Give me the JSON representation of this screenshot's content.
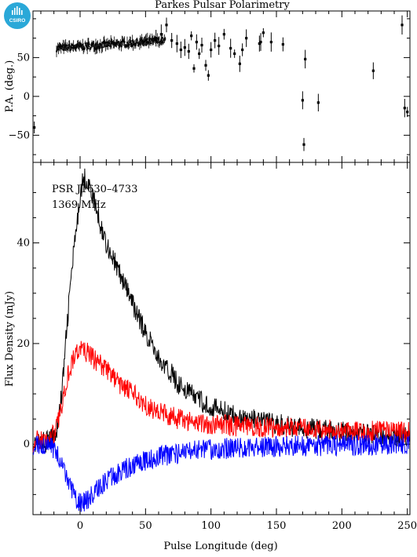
{
  "branding": {
    "logo_text": "CSIRO",
    "logo_color": "#2aa8d8"
  },
  "chart_data": [
    {
      "type": "scatter",
      "title": "Parkes Pulsar Polarimetry",
      "xlabel": "",
      "ylabel": "P.A. (deg.)",
      "xlim": [
        -36,
        252
      ],
      "ylim": [
        -85,
        110
      ],
      "yticks": [
        -50,
        0,
        50
      ],
      "color": "#000000",
      "dense_band": {
        "x_start": -18,
        "x_end": 65,
        "y_start": 62,
        "y_end": 72
      },
      "points": [
        {
          "x": -35,
          "y": -40
        },
        {
          "x": 58,
          "y": 75
        },
        {
          "x": 62,
          "y": 80
        },
        {
          "x": 66,
          "y": 92
        },
        {
          "x": 70,
          "y": 72
        },
        {
          "x": 74,
          "y": 68
        },
        {
          "x": 77,
          "y": 60
        },
        {
          "x": 80,
          "y": 63
        },
        {
          "x": 83,
          "y": 58
        },
        {
          "x": 85,
          "y": 78
        },
        {
          "x": 87,
          "y": 36
        },
        {
          "x": 89,
          "y": 70
        },
        {
          "x": 91,
          "y": 55
        },
        {
          "x": 93,
          "y": 66
        },
        {
          "x": 96,
          "y": 40
        },
        {
          "x": 98,
          "y": 27
        },
        {
          "x": 100,
          "y": 60
        },
        {
          "x": 103,
          "y": 72
        },
        {
          "x": 106,
          "y": 65
        },
        {
          "x": 110,
          "y": 80
        },
        {
          "x": 115,
          "y": 62
        },
        {
          "x": 118,
          "y": 55
        },
        {
          "x": 122,
          "y": 42
        },
        {
          "x": 124,
          "y": 60
        },
        {
          "x": 127,
          "y": 75
        },
        {
          "x": 137,
          "y": 68
        },
        {
          "x": 138,
          "y": 70
        },
        {
          "x": 140,
          "y": 82
        },
        {
          "x": 146,
          "y": 70
        },
        {
          "x": 155,
          "y": 67
        },
        {
          "x": 170,
          "y": -5
        },
        {
          "x": 171,
          "y": -62
        },
        {
          "x": 172,
          "y": 48
        },
        {
          "x": 182,
          "y": -8
        },
        {
          "x": 224,
          "y": 33
        },
        {
          "x": 246,
          "y": 92
        },
        {
          "x": 248,
          "y": -15
        },
        {
          "x": 250,
          "y": -20
        }
      ]
    },
    {
      "type": "line",
      "xlabel": "Pulse Longitude (deg)",
      "ylabel": "Flux Density (mJy)",
      "xlim": [
        -36,
        252
      ],
      "ylim": [
        -14,
        56
      ],
      "xticks": [
        0,
        50,
        100,
        150,
        200,
        250
      ],
      "yticks": [
        0,
        20,
        40
      ],
      "annotations": [
        "PSR J1630–4733",
        "1369 MHz"
      ],
      "series": [
        {
          "color": "#000000",
          "x": [
            -36,
            -30,
            -25,
            -20,
            -17,
            -14,
            -11,
            -8,
            -5,
            -2,
            0,
            3,
            6,
            10,
            15,
            20,
            25,
            30,
            35,
            40,
            45,
            50,
            55,
            60,
            65,
            70,
            75,
            80,
            85,
            90,
            95,
            100,
            105,
            110,
            115,
            120,
            130,
            140,
            150,
            160,
            170,
            180,
            190,
            200,
            210,
            220,
            230,
            240,
            252
          ],
          "y": [
            0,
            0.3,
            0.6,
            1.5,
            4,
            10,
            20,
            30,
            38,
            44,
            50,
            53,
            52,
            49,
            44,
            40,
            37,
            34,
            31,
            28,
            25,
            22,
            20,
            17,
            15,
            14,
            12,
            11,
            10,
            9,
            8,
            7.5,
            7,
            6.5,
            6,
            5.5,
            5,
            4.5,
            4,
            3.6,
            3.3,
            3.0,
            2.7,
            2.4,
            2.2,
            2.0,
            1.8,
            1.6,
            1.4
          ]
        },
        {
          "color": "#ff0000",
          "x": [
            -36,
            -30,
            -25,
            -20,
            -17,
            -14,
            -11,
            -8,
            -5,
            -2,
            0,
            3,
            6,
            10,
            15,
            20,
            25,
            30,
            35,
            40,
            45,
            50,
            55,
            60,
            65,
            70,
            75,
            80,
            85,
            90,
            95,
            100,
            105,
            110,
            115,
            120,
            130,
            140,
            150,
            160,
            170,
            180,
            190,
            200,
            210,
            220,
            230,
            240,
            252
          ],
          "y": [
            0.5,
            0.8,
            1,
            2,
            4,
            8,
            12,
            15,
            17,
            18.5,
            19,
            18.5,
            18,
            17,
            16,
            15,
            13.5,
            12,
            11,
            10,
            9,
            8,
            7,
            6.5,
            6,
            5.5,
            5,
            4.8,
            4.6,
            4.4,
            4.2,
            4,
            3.9,
            3.8,
            3.7,
            3.6,
            3.5,
            3.4,
            3.3,
            3.2,
            3.1,
            3.0,
            2.9,
            2.8,
            2.7,
            2.6,
            2.5,
            2.4,
            2.3
          ]
        },
        {
          "color": "#0000ff",
          "x": [
            -36,
            -30,
            -25,
            -20,
            -17,
            -14,
            -11,
            -8,
            -5,
            -2,
            0,
            3,
            6,
            10,
            15,
            20,
            25,
            30,
            35,
            40,
            45,
            50,
            55,
            60,
            65,
            70,
            75,
            80,
            85,
            90,
            95,
            100,
            105,
            110,
            115,
            120,
            130,
            140,
            150,
            160,
            170,
            180,
            190,
            200,
            210,
            220,
            230,
            240,
            252
          ],
          "y": [
            0,
            0,
            -0.3,
            -0.8,
            -2,
            -4,
            -6.5,
            -8.5,
            -10,
            -11,
            -11.5,
            -11.5,
            -11,
            -10,
            -8.5,
            -7.5,
            -6.5,
            -5.5,
            -4.8,
            -4.2,
            -3.6,
            -3.2,
            -2.8,
            -2.5,
            -2.2,
            -2,
            -1.8,
            -1.6,
            -1.4,
            -1.3,
            -1.2,
            -1.1,
            -1,
            -0.9,
            -0.8,
            -0.7,
            -0.6,
            -0.5,
            -0.45,
            -0.4,
            -0.35,
            -0.3,
            -0.25,
            -0.2,
            -0.2,
            -0.15,
            -0.1,
            -0.1,
            0
          ]
        }
      ]
    }
  ]
}
